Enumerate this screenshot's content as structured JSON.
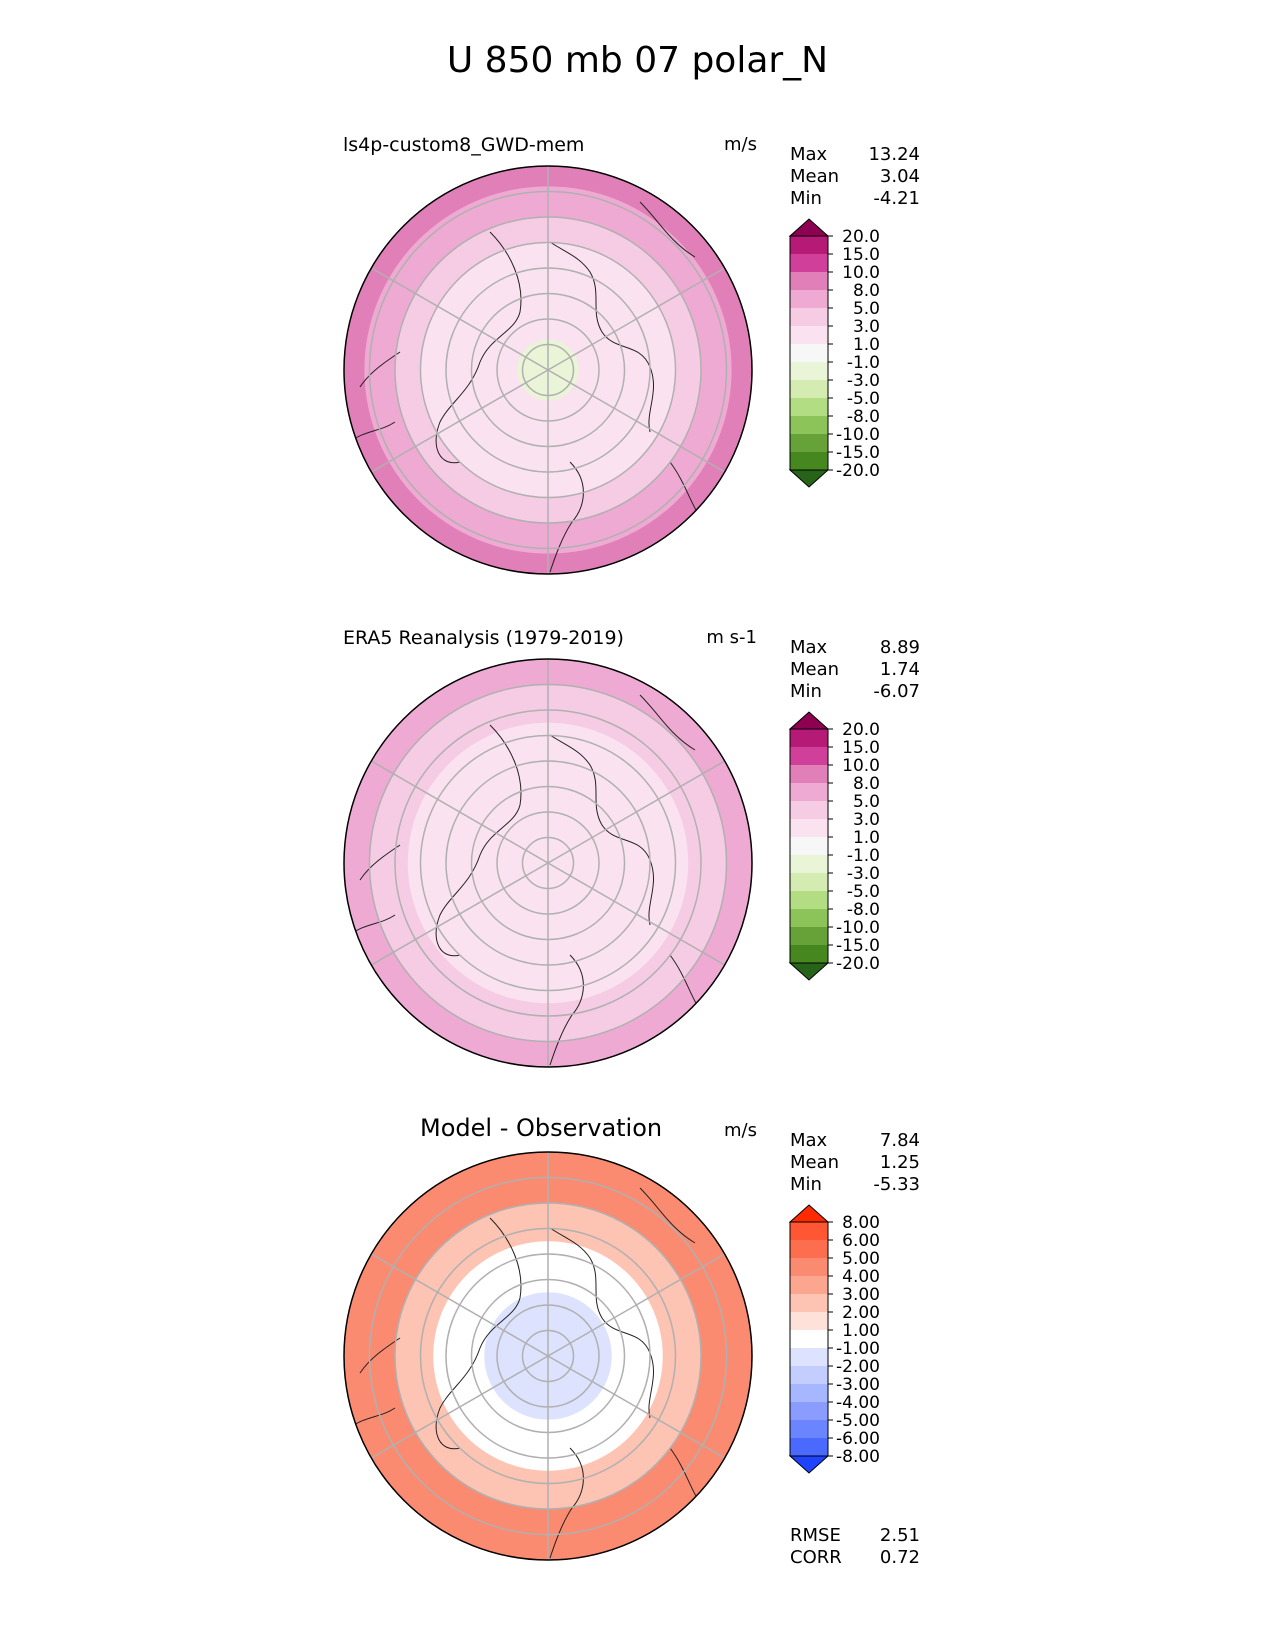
{
  "title": "U 850 mb 07 polar_N",
  "panels": [
    {
      "name": "model",
      "title": "ls4p-custom8_GWD-mem",
      "units": "m/s",
      "stats": [
        {
          "label": "Max",
          "value": "13.24"
        },
        {
          "label": "Mean",
          "value": "3.04"
        },
        {
          "label": "Min",
          "value": "-4.21"
        }
      ]
    },
    {
      "name": "obs",
      "title": "ERA5 Reanalysis (1979-2019)",
      "units": "m s-1",
      "stats": [
        {
          "label": "Max",
          "value": "8.89"
        },
        {
          "label": "Mean",
          "value": "1.74"
        },
        {
          "label": "Min",
          "value": "-6.07"
        }
      ]
    },
    {
      "name": "diff",
      "title": "Model - Observation",
      "units": "m/s",
      "stats": [
        {
          "label": "Max",
          "value": "7.84"
        },
        {
          "label": "Mean",
          "value": "1.25"
        },
        {
          "label": "Min",
          "value": "-5.33"
        }
      ],
      "extra_stats": [
        {
          "label": "RMSE",
          "value": "2.51"
        },
        {
          "label": "CORR",
          "value": "0.72"
        }
      ]
    }
  ],
  "chart_data": [
    {
      "type": "heatmap",
      "projection": "north polar stereographic",
      "title": "ls4p-custom8_GWD-mem",
      "units": "m/s",
      "colorbar": {
        "levels": [
          "20.0",
          "15.0",
          "10.0",
          "8.0",
          "5.0",
          "3.0",
          "1.0",
          "-1.0",
          "-3.0",
          "-5.0",
          "-8.0",
          "-10.0",
          "-15.0",
          "-20.0"
        ],
        "colors": [
          "#8e0152",
          "#b51a77",
          "#d0409a",
          "#e17fb8",
          "#eeaad2",
          "#f6cce4",
          "#fae2f0",
          "#f7f7f7",
          "#e9f5d6",
          "#d4ecb2",
          "#b3dd82",
          "#8dc45a",
          "#66a237",
          "#47871f",
          "#276419"
        ],
        "extend": "both"
      },
      "regions": [
        {
          "ring_deg_from_pole": [
            0,
            12
          ],
          "value": -1.5
        },
        {
          "ring_deg_from_pole": [
            12,
            30
          ],
          "value": 1.5
        },
        {
          "ring_deg_from_pole": [
            30,
            50
          ],
          "value": 2.0
        },
        {
          "ring_deg_from_pole": [
            50,
            60
          ],
          "value": 4.0
        },
        {
          "ring_deg_from_pole": [
            60,
            72
          ],
          "value": 7.0
        },
        {
          "ring_deg_from_pole": [
            72,
            80
          ],
          "value": 9.0
        }
      ]
    },
    {
      "type": "heatmap",
      "projection": "north polar stereographic",
      "title": "ERA5 Reanalysis (1979-2019)",
      "units": "m s-1",
      "colorbar": {
        "levels": [
          "20.0",
          "15.0",
          "10.0",
          "8.0",
          "5.0",
          "3.0",
          "1.0",
          "-1.0",
          "-3.0",
          "-5.0",
          "-8.0",
          "-10.0",
          "-15.0",
          "-20.0"
        ],
        "colors": [
          "#8e0152",
          "#b51a77",
          "#d0409a",
          "#e17fb8",
          "#eeaad2",
          "#f6cce4",
          "#fae2f0",
          "#f7f7f7",
          "#e9f5d6",
          "#d4ecb2",
          "#b3dd82",
          "#8dc45a",
          "#66a237",
          "#47871f",
          "#276419"
        ],
        "extend": "both"
      },
      "regions": [
        {
          "ring_deg_from_pole": [
            0,
            30
          ],
          "value": 1.5
        },
        {
          "ring_deg_from_pole": [
            30,
            55
          ],
          "value": 2.0
        },
        {
          "ring_deg_from_pole": [
            55,
            70
          ],
          "value": 3.5
        },
        {
          "ring_deg_from_pole": [
            70,
            80
          ],
          "value": 6.0
        }
      ]
    },
    {
      "type": "heatmap",
      "projection": "north polar stereographic",
      "title": "Model - Observation",
      "units": "m/s",
      "colorbar": {
        "levels": [
          "8.00",
          "6.00",
          "5.00",
          "4.00",
          "3.00",
          "2.00",
          "1.00",
          "-1.00",
          "-2.00",
          "-3.00",
          "-4.00",
          "-5.00",
          "-6.00",
          "-8.00"
        ],
        "colors": [
          "#ff2a00",
          "#ff5733",
          "#fc6e4e",
          "#fb8b70",
          "#fca58f",
          "#fdc3b3",
          "#fee2da",
          "#ffffff",
          "#dde3ff",
          "#c3ceff",
          "#a6b6ff",
          "#8a9dff",
          "#6b84ff",
          "#4a69ff",
          "#1e44ff"
        ],
        "extend": "both"
      },
      "regions": [
        {
          "ring_deg_from_pole": [
            0,
            25
          ],
          "value": -1.5
        },
        {
          "ring_deg_from_pole": [
            25,
            45
          ],
          "value": 0.0
        },
        {
          "ring_deg_from_pole": [
            45,
            60
          ],
          "value": 2.5
        },
        {
          "ring_deg_from_pole": [
            60,
            80
          ],
          "value": 4.5
        }
      ]
    }
  ]
}
